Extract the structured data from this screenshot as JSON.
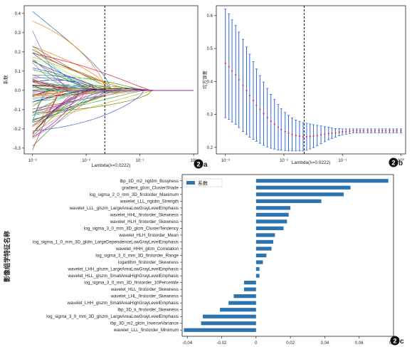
{
  "panel_a": {
    "panel_label": "a",
    "ylabel": "系数",
    "xlabel": "Lambda(λ=0.0222)",
    "x_ticks": [
      "10⁻³",
      "10⁻²",
      "10⁻¹",
      "10⁰"
    ],
    "y_ticks": [
      "0.4",
      "0.3",
      "0.2",
      "0.1",
      "0.0",
      "-0.1",
      "-0.2",
      "-0.3"
    ]
  },
  "panel_b": {
    "panel_label": "b",
    "ylabel": "均方误差",
    "xlabel": "Lambda(λ=0.0222)",
    "x_ticks": [
      "10⁻³",
      "10⁻²",
      "10⁻¹",
      "10⁰"
    ],
    "y_ticks": [
      "0.6",
      "0.5",
      "0.4",
      "0.3",
      "0.2"
    ]
  },
  "panel_c": {
    "panel_label": "c",
    "ylabel": "影像组学特征名称",
    "legend": "系数",
    "x_ticks": [
      "-0.04",
      "-0.02",
      "0",
      "0.02",
      "0.04",
      "0.06",
      "0.08"
    ]
  },
  "colors": {
    "bar": "#2b74b0",
    "cv_err": "#2f6bd6",
    "cv_mean": "#e0333a",
    "axis": "#222222"
  },
  "chart_data": [
    {
      "type": "line",
      "panel": "a",
      "xscale": "log",
      "xlim": [
        0.0007,
        1.2
      ],
      "ylim": [
        -0.33,
        0.44
      ],
      "selected_lambda": 0.0222,
      "xlabel": "Lambda(λ=0.0222)",
      "ylabel": "系数",
      "note": "LASSO coefficient paths; many feature curves converging to 0 as lambda increases"
    },
    {
      "type": "scatter",
      "panel": "b",
      "xscale": "log",
      "xlim": [
        0.0007,
        1.2
      ],
      "ylim": [
        0.18,
        0.63
      ],
      "selected_lambda": 0.0222,
      "xlabel": "Lambda(λ=0.0222)",
      "ylabel": "均方误差",
      "x": [
        0.001,
        0.00115,
        0.0013,
        0.0015,
        0.0017,
        0.002,
        0.0023,
        0.0026,
        0.003,
        0.0034,
        0.0039,
        0.0045,
        0.0052,
        0.006,
        0.0069,
        0.008,
        0.009,
        0.0105,
        0.012,
        0.0138,
        0.016,
        0.0185,
        0.0213,
        0.0245,
        0.028,
        0.032,
        0.037,
        0.043,
        0.05,
        0.058,
        0.066,
        0.076,
        0.088,
        0.1,
        0.115,
        0.133,
        0.153,
        0.176,
        0.2,
        0.23,
        0.27,
        0.31,
        0.36,
        0.42,
        0.48,
        0.55,
        0.64,
        0.74,
        0.85,
        1.0
      ],
      "y": [
        0.455,
        0.445,
        0.432,
        0.42,
        0.405,
        0.388,
        0.372,
        0.357,
        0.342,
        0.328,
        0.315,
        0.302,
        0.29,
        0.279,
        0.27,
        0.261,
        0.254,
        0.248,
        0.243,
        0.239,
        0.236,
        0.234,
        0.232,
        0.232,
        0.233,
        0.234,
        0.236,
        0.238,
        0.24,
        0.242,
        0.243,
        0.244,
        0.246,
        0.247,
        0.248,
        0.249,
        0.25,
        0.25,
        0.25,
        0.25,
        0.25,
        0.25,
        0.25,
        0.25,
        0.25,
        0.25,
        0.25,
        0.25,
        0.25,
        0.25
      ],
      "err": [
        0.165,
        0.16,
        0.155,
        0.15,
        0.145,
        0.14,
        0.133,
        0.126,
        0.118,
        0.11,
        0.103,
        0.096,
        0.089,
        0.082,
        0.075,
        0.069,
        0.063,
        0.058,
        0.054,
        0.05,
        0.047,
        0.045,
        0.043,
        0.041,
        0.038,
        0.035,
        0.031,
        0.027,
        0.023,
        0.019,
        0.016,
        0.013,
        0.011,
        0.009,
        0.008,
        0.007,
        0.006,
        0.006,
        0.006,
        0.006,
        0.006,
        0.006,
        0.006,
        0.006,
        0.006,
        0.006,
        0.006,
        0.006,
        0.006,
        0.006
      ]
    },
    {
      "type": "bar",
      "orientation": "horizontal",
      "panel": "c",
      "series": [
        {
          "name": "系数"
        }
      ],
      "xlim": [
        -0.043,
        0.08
      ],
      "categories": [
        "lbp_3D_m2_ngtdm_Busyness",
        "gradient_glcm_ClusterShade",
        "log_sigma_2_0_mm_3D_firstorder_Maximum",
        "wavelet_LLL_ngtdm_Strength",
        "wavelet_LLL_glszm_LargeAreaLowGrayLevelEmphasis",
        "wavelet_HHL_firstorder_Skewness",
        "wavelet_HLH_firstorder_Skewness",
        "log_sigma_3_0_mm_3D_glcm_ClusterTendency",
        "wavelet_HLH_firstorder_Mean",
        "log_sigma_1_0_mm_3D_gldm_LargeDependenceLowGrayLevelEmphasis",
        "wavelet_HHH_glcm_Correlation",
        "log_sigma_3_0_mm_3D_firstorder_Range",
        "logarithm_firstorder_Skewness",
        "wavelet_LHH_glszm_LargeAreaLowGrayLevelEmphasis",
        "wavelet_HLL_glszm_SmallAreaHighGrayLevelEmphasis",
        "log_sigma_3_0_mm_3D_firstorder_10Percentile",
        "wavelet_HLL_firstorder_Skewness",
        "wavelet_LHL_firstorder_Skewness",
        "wavelet_LHH_glszm_SmallAreaHighGrayLevelEmphasis",
        "lbp_3D_k_firstorder_Skewness",
        "log_sigma_3_0_mm_3D_glszm_LargeAreaLowGrayLevelEmphasis",
        "lbp_3D_m2_glcm_InverseVariance",
        "wavelet_LLL_firstorder_Minimum"
      ],
      "values": [
        0.077,
        0.055,
        0.051,
        0.038,
        0.02,
        0.019,
        0.018,
        0.016,
        0.011,
        0.01,
        0.009,
        0.006,
        0.004,
        0.002,
        0.002,
        -0.007,
        -0.007,
        -0.013,
        -0.016,
        -0.021,
        -0.031,
        -0.032,
        -0.042
      ]
    }
  ]
}
